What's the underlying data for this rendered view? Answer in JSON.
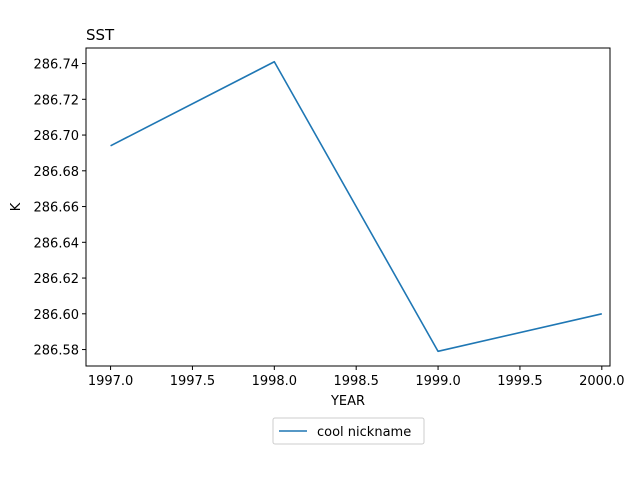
{
  "chart_data": {
    "type": "line",
    "title": "SST",
    "xlabel": "YEAR",
    "ylabel": "K",
    "xlim": [
      1996.85,
      2000.05
    ],
    "ylim": [
      286.5708,
      286.7487
    ],
    "x_ticks": [
      1997.0,
      1997.5,
      1998.0,
      1998.5,
      1999.0,
      1999.5,
      2000.0
    ],
    "x_tick_labels": [
      "1997.0",
      "1997.5",
      "1998.0",
      "1998.5",
      "1999.0",
      "1999.5",
      "2000.0"
    ],
    "y_ticks": [
      286.58,
      286.6,
      286.62,
      286.64,
      286.66,
      286.68,
      286.7,
      286.72,
      286.74
    ],
    "y_tick_labels": [
      "286.58",
      "286.60",
      "286.62",
      "286.64",
      "286.66",
      "286.68",
      "286.70",
      "286.72",
      "286.74"
    ],
    "grid": false,
    "legend_placement": "bottom-center",
    "series": [
      {
        "name": "cool nickname",
        "color": "#1f77b4",
        "x": [
          1997,
          1998,
          1999,
          2000
        ],
        "y": [
          286.694,
          286.741,
          286.579,
          286.6
        ]
      }
    ]
  }
}
